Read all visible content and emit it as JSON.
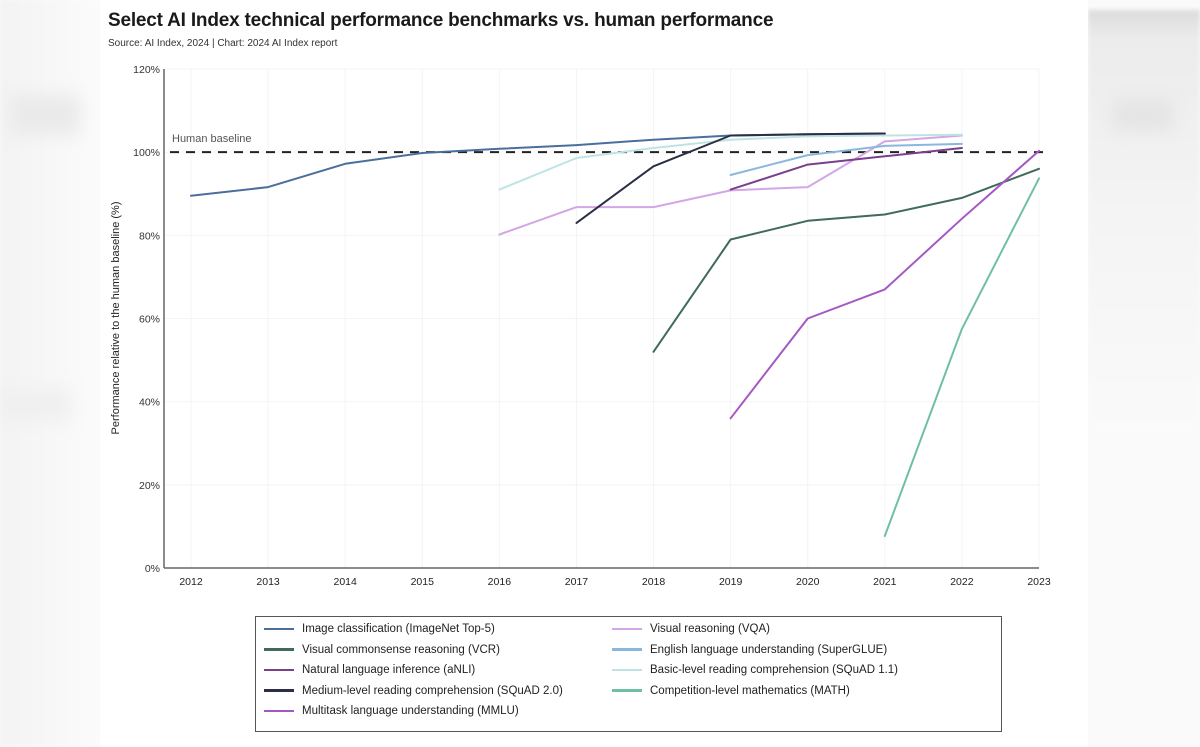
{
  "page": {
    "title": "Select AI Index technical performance benchmarks vs. human performance",
    "subtitle": "Source: AI Index, 2024 | Chart: 2024 AI Index report"
  },
  "chart_data": {
    "type": "line",
    "title": "Select AI Index technical performance benchmarks vs. human performance",
    "subtitle": "Source: AI Index, 2024 | Chart: 2024 AI Index report",
    "xlabel": "",
    "ylabel": "Performance relative to the human baseline (%)",
    "x": [
      2012,
      2013,
      2014,
      2015,
      2016,
      2017,
      2018,
      2019,
      2020,
      2021,
      2022,
      2023
    ],
    "x_tick_labels": [
      "2012",
      "2013",
      "2014",
      "2015",
      "2016",
      "2017",
      "2018",
      "2019",
      "2020",
      "2021",
      "2022",
      "2023"
    ],
    "ylim": [
      0,
      120
    ],
    "y_ticks": [
      0,
      20,
      40,
      60,
      80,
      100,
      120
    ],
    "y_tick_labels": [
      "0%",
      "20%",
      "40%",
      "60%",
      "80%",
      "100%",
      "120%"
    ],
    "grid": true,
    "reference_line": {
      "label": "Human baseline",
      "value": 100,
      "style": "dashed"
    },
    "legend_position": "bottom",
    "series": [
      {
        "name": "Image classification (ImageNet Top-5)",
        "color": "#4a6f9c",
        "x": [
          2012,
          2013,
          2014,
          2015,
          2016,
          2017,
          2018,
          2019,
          2020,
          2021
        ],
        "values": [
          89.5,
          91.6,
          97.2,
          99.8,
          100.8,
          101.7,
          103.0,
          104.0,
          104.3,
          104.5
        ]
      },
      {
        "name": "Visual reasoning (VQA)",
        "color": "#d3a6e6",
        "x": [
          2016,
          2017,
          2018,
          2019,
          2020,
          2021,
          2022
        ],
        "values": [
          80.2,
          86.8,
          86.8,
          90.8,
          91.6,
          102.6,
          104.0
        ]
      },
      {
        "name": "Visual commonsense reasoning (VCR)",
        "color": "#3f6a5c",
        "x": [
          2018,
          2019,
          2020,
          2021,
          2022,
          2023
        ],
        "values": [
          52.0,
          79.0,
          83.5,
          85.0,
          89.0,
          96.0
        ]
      },
      {
        "name": "English language understanding (SuperGLUE)",
        "color": "#8ab8dc",
        "x": [
          2019,
          2020,
          2021,
          2022
        ],
        "values": [
          94.5,
          99.3,
          101.5,
          102.0
        ]
      },
      {
        "name": "Natural language inference (aNLI)",
        "color": "#7b3f8c",
        "x": [
          2019,
          2020,
          2021,
          2022
        ],
        "values": [
          91.0,
          97.0,
          99.0,
          101.0
        ]
      },
      {
        "name": "Basic-level reading comprehension (SQuAD 1.1)",
        "color": "#bfe3e3",
        "x": [
          2016,
          2017,
          2018,
          2019,
          2020,
          2021,
          2022
        ],
        "values": [
          91.0,
          98.6,
          101.0,
          103.0,
          103.8,
          104.0,
          104.2
        ]
      },
      {
        "name": "Medium-level reading comprehension (SQuAD 2.0)",
        "color": "#2b2f45",
        "x": [
          2017,
          2018,
          2019,
          2020,
          2021
        ],
        "values": [
          83.0,
          96.6,
          104.0,
          104.3,
          104.5
        ]
      },
      {
        "name": "Competition-level mathematics (MATH)",
        "color": "#6fbfa5",
        "x": [
          2021,
          2022,
          2023
        ],
        "values": [
          7.7,
          57.5,
          93.7
        ]
      },
      {
        "name": "Multitask language understanding (MMLU)",
        "color": "#a558c4",
        "x": [
          2019,
          2020,
          2021,
          2022,
          2023
        ],
        "values": [
          36.0,
          60.0,
          67.0,
          84.0,
          100.3
        ]
      }
    ]
  },
  "legend": {
    "left": [
      {
        "label": "Image classification (ImageNet Top-5)",
        "color": "#4a6f9c"
      },
      {
        "label": "Visual commonsense reasoning (VCR)",
        "color": "#3f6a5c"
      },
      {
        "label": "Natural language inference (aNLI)",
        "color": "#7b3f8c"
      },
      {
        "label": "Medium-level reading comprehension (SQuAD 2.0)",
        "color": "#2b2f45"
      },
      {
        "label": "Multitask language understanding (MMLU)",
        "color": "#a558c4"
      }
    ],
    "right": [
      {
        "label": "Visual reasoning (VQA)",
        "color": "#d3a6e6"
      },
      {
        "label": "English language understanding (SuperGLUE)",
        "color": "#8ab8dc"
      },
      {
        "label": "Basic-level reading comprehension (SQuAD 1.1)",
        "color": "#bfe3e3"
      },
      {
        "label": "Competition-level mathematics (MATH)",
        "color": "#6fbfa5"
      }
    ]
  }
}
